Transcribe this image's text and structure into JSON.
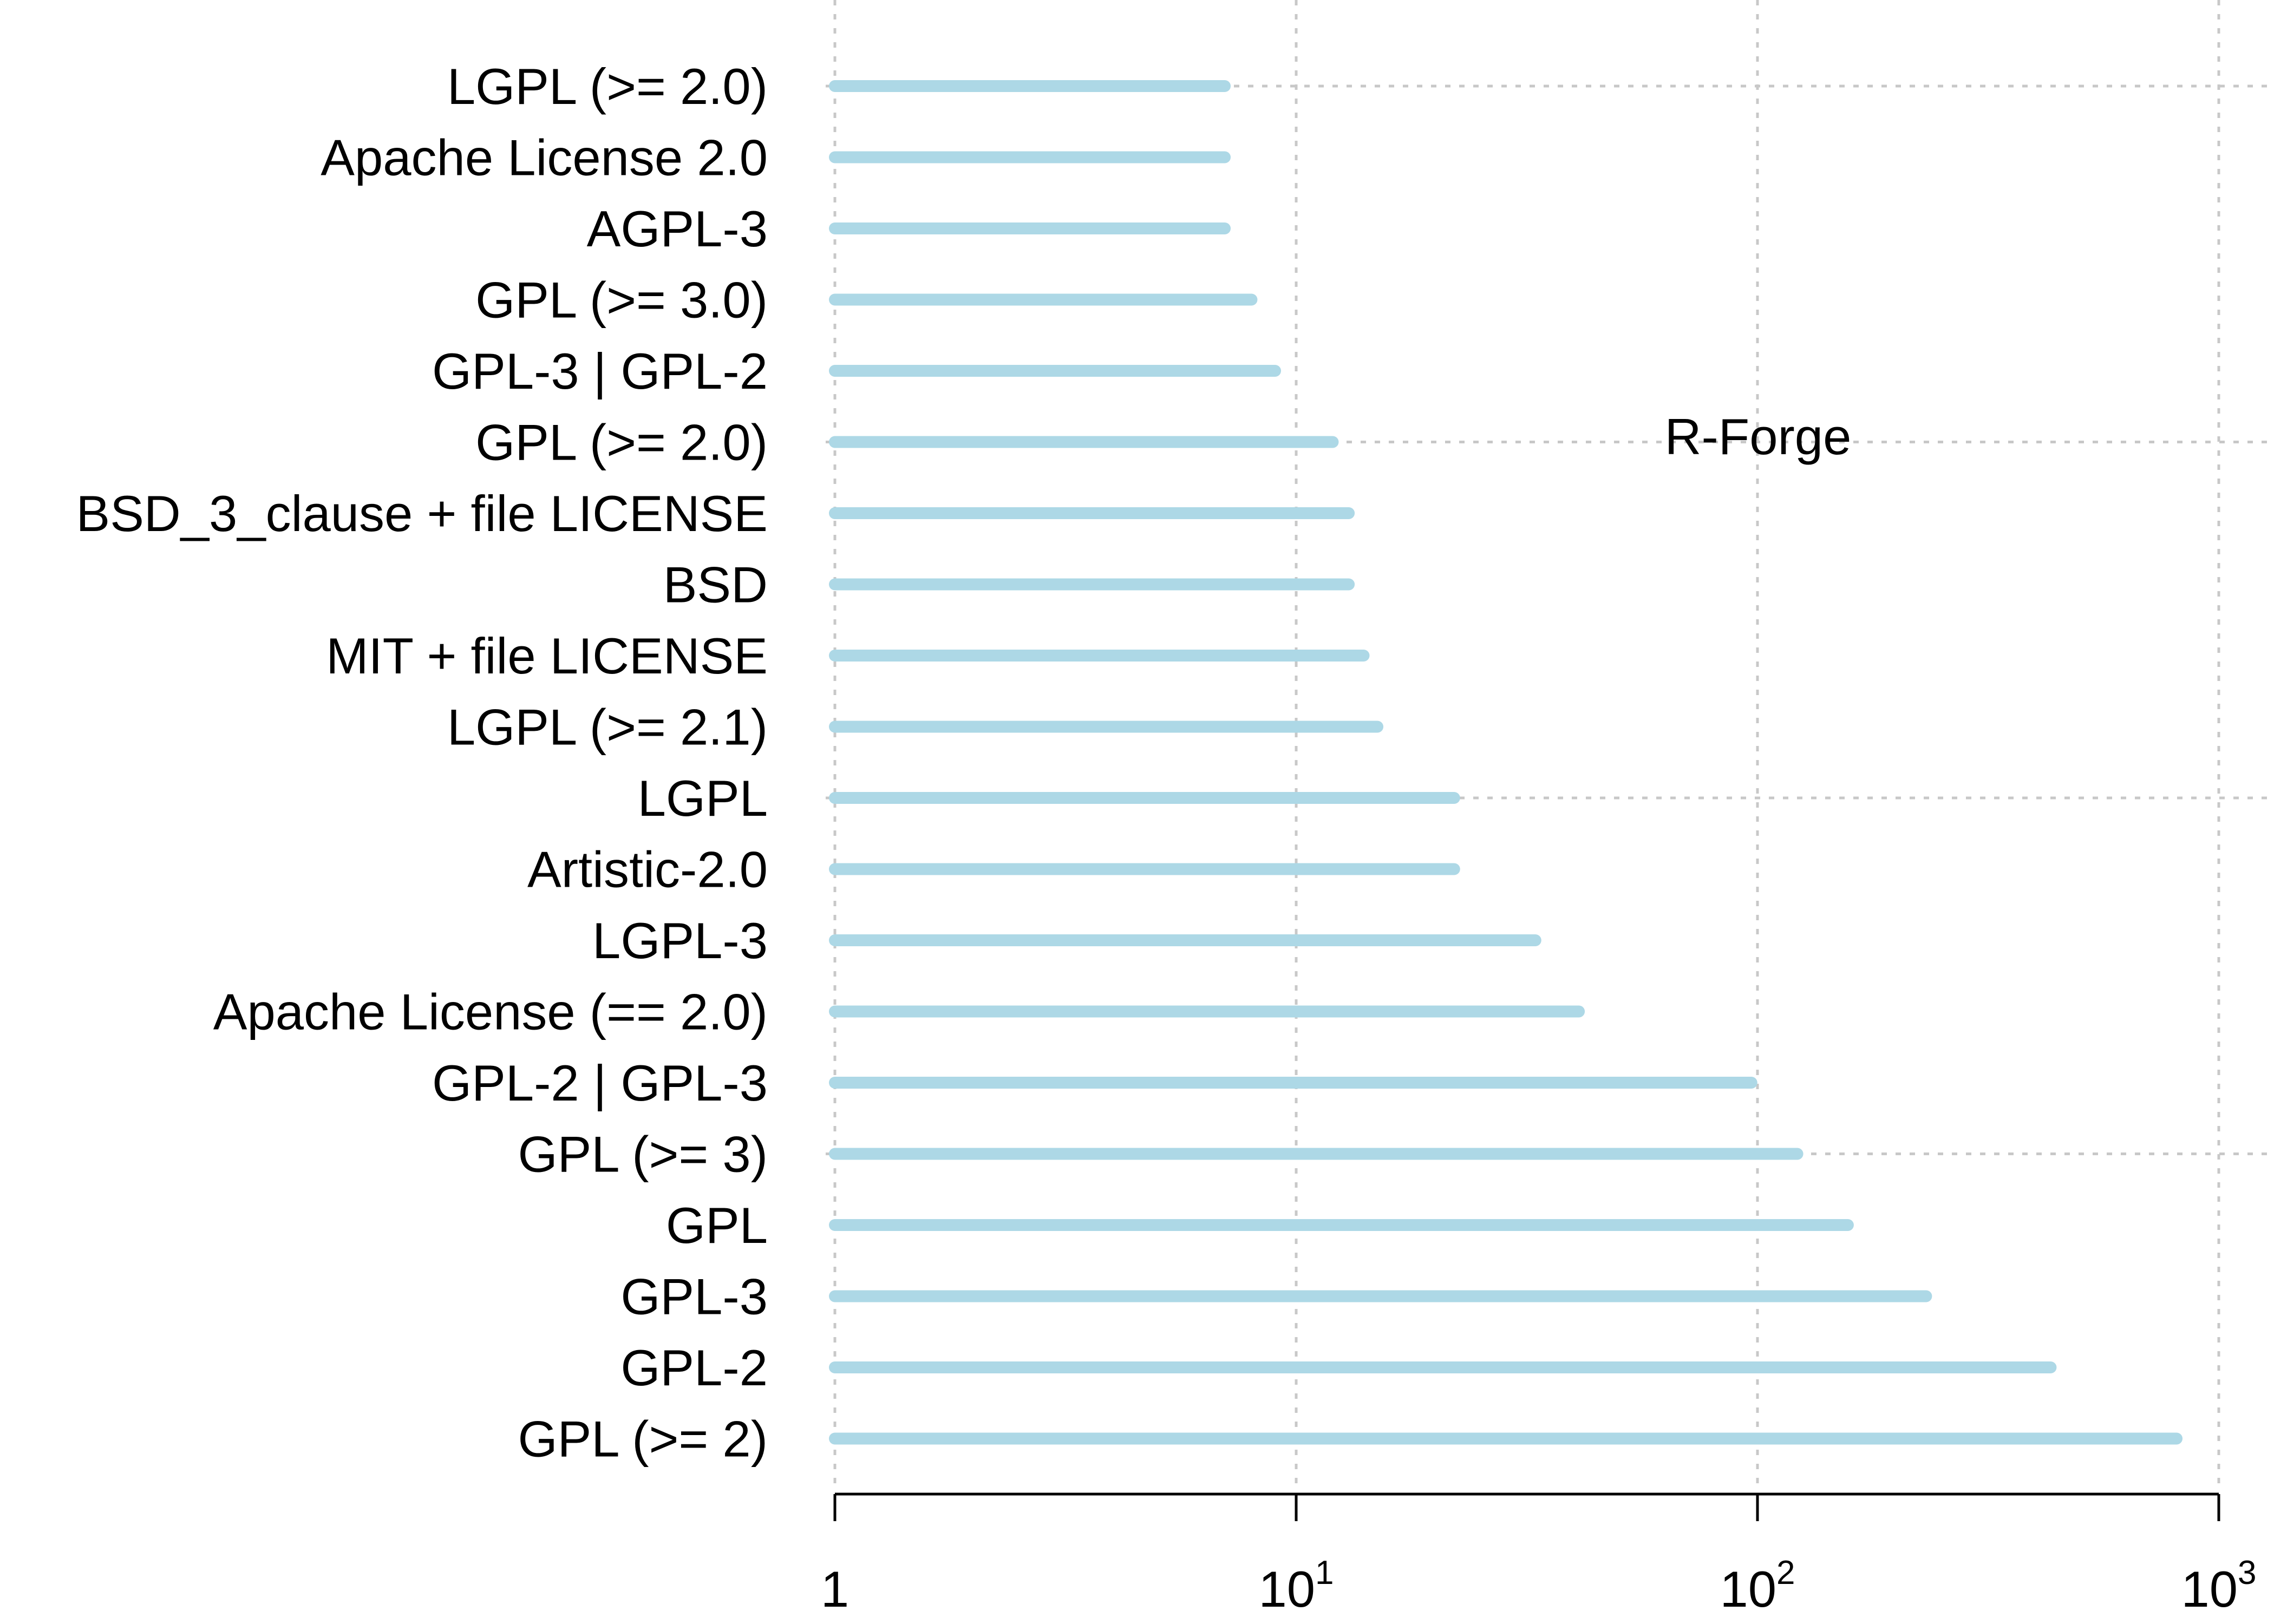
{
  "chart_data": {
    "type": "bar",
    "orientation": "horizontal",
    "annotation": "R-Forge",
    "x_scale": "log",
    "xlim": [
      1,
      1000
    ],
    "x_ticks": [
      {
        "value": 1,
        "base": "1",
        "exp": ""
      },
      {
        "value": 10,
        "base": "10",
        "exp": "1"
      },
      {
        "value": 100,
        "base": "10",
        "exp": "2"
      },
      {
        "value": 1000,
        "base": "10",
        "exp": "3"
      }
    ],
    "grid": "dotted",
    "bar_color": "#add8e6",
    "categories": [
      "LGPL (>= 2.0)",
      "Apache License 2.0",
      "AGPL-3",
      "GPL (>= 3.0)",
      "GPL-3 | GPL-2",
      "GPL (>= 2.0)",
      "BSD_3_clause + file LICENSE",
      "BSD",
      "MIT + file LICENSE",
      "LGPL (>= 2.1)",
      "LGPL",
      "Artistic-2.0",
      "LGPL-3",
      "Apache License (== 2.0)",
      "GPL-2 | GPL-3",
      "GPL (>= 3)",
      "GPL",
      "GPL-3",
      "GPL-2",
      "GPL (>= 2)"
    ],
    "values": [
      7,
      7,
      7,
      8,
      9,
      12,
      13,
      13,
      14,
      15,
      22,
      22,
      33,
      41,
      97,
      122,
      157,
      232,
      432,
      810
    ]
  }
}
